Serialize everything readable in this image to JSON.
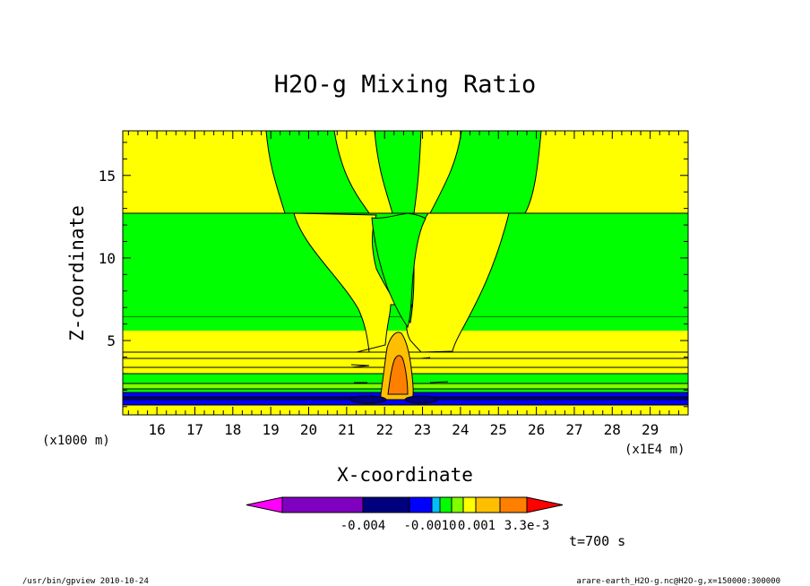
{
  "chart_data": {
    "type": "contour",
    "title": "H2O-g Mixing Ratio",
    "xlabel": "X-coordinate",
    "ylabel": "Z-coordinate",
    "x_unit": "(x1E4 m)",
    "y_unit": "(x1000 m)",
    "xlim": [
      15.1,
      30.0
    ],
    "ylim": [
      0.5,
      17.7
    ],
    "x_ticks": [
      16,
      17,
      18,
      19,
      20,
      21,
      22,
      23,
      24,
      25,
      26,
      27,
      28,
      29
    ],
    "y_ticks": [
      5,
      10,
      15
    ],
    "colorbar_labels": [
      "-0.004",
      "-0.0010",
      "0.001",
      "3.3e-3"
    ],
    "colorbar_colors": [
      "#ff00ff",
      "#7f00bf",
      "#00007f",
      "#0000ff",
      "#00bfff",
      "#00ff00",
      "#7fff00",
      "#ffff00",
      "#ffbf00",
      "#ff7f00",
      "#ff0000"
    ],
    "time_label": "t=700 s"
  },
  "footer": {
    "left": "/usr/bin/gpview  2010-10-24",
    "right": "arare-earth_H2O-g.nc@H2O-g,x=150000:300000"
  }
}
